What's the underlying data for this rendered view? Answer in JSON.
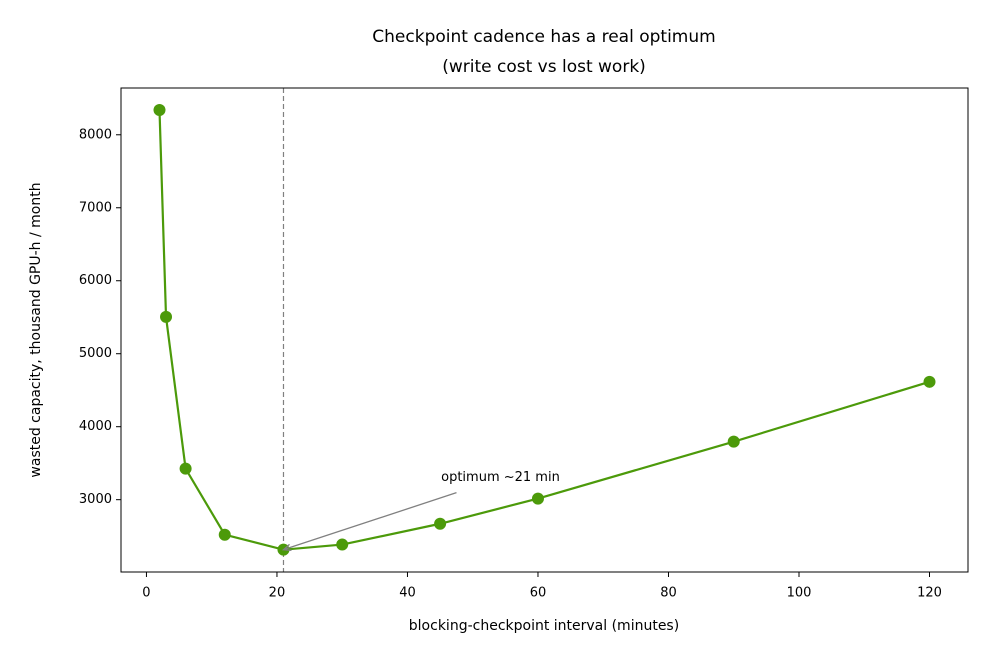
{
  "chart_data": {
    "type": "line",
    "title": "Checkpoint cadence has a real optimum",
    "subtitle": "(write cost vs lost work)",
    "x_label": "blocking-checkpoint interval (minutes)",
    "y_label": "wasted capacity, thousand GPU-h / month",
    "x": [
      2,
      3,
      6,
      12,
      21,
      30,
      45,
      60,
      90,
      120
    ],
    "series": [
      {
        "name": "wasted capacity",
        "color": "#4c9a0a",
        "values": [
          8340,
          5505,
          3425,
          2520,
          2315,
          2385,
          2670,
          3015,
          3795,
          4615
        ]
      }
    ],
    "xlim": [
      -3.9,
      125.9
    ],
    "ylim": [
      2009,
      8641
    ],
    "xticks": [
      0,
      20,
      40,
      60,
      80,
      100,
      120
    ],
    "yticks": [
      3000,
      4000,
      5000,
      6000,
      7000,
      8000
    ],
    "vline": 21,
    "annotation": {
      "text": "optimum ~21 min",
      "x": 21,
      "y": 2315
    }
  }
}
